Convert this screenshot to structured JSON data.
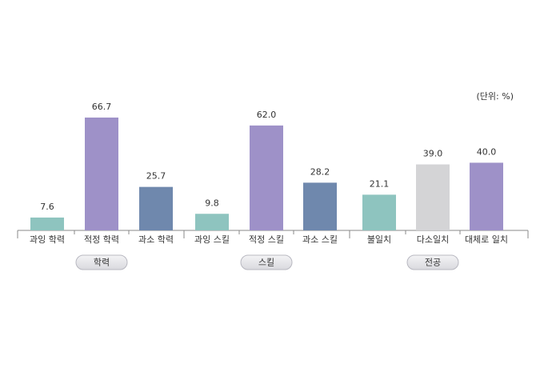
{
  "chart_data": {
    "type": "bar",
    "unit_note": "(단위: %)",
    "categories": [
      "과잉 학력",
      "적정 학력",
      "과소 학력",
      "과잉 스킬",
      "적정 스킬",
      "과소 스킬",
      "불일치",
      "다소일치",
      "대체로 일치"
    ],
    "values": [
      7.6,
      66.7,
      25.7,
      9.8,
      62.0,
      28.2,
      21.1,
      39.0,
      40.0
    ],
    "value_labels": [
      "7.6",
      "66.7",
      "25.7",
      "9.8",
      "62.0",
      "28.2",
      "21.1",
      "39.0",
      "40.0"
    ],
    "colors": [
      "#8ec4bf",
      "#9e91c8",
      "#6f88ad",
      "#8ec4bf",
      "#9e91c8",
      "#6f88ad",
      "#8ec4bf",
      "#d4d4d6",
      "#9e91c8"
    ],
    "groups": [
      "학력",
      "스킬",
      "전공"
    ]
  }
}
